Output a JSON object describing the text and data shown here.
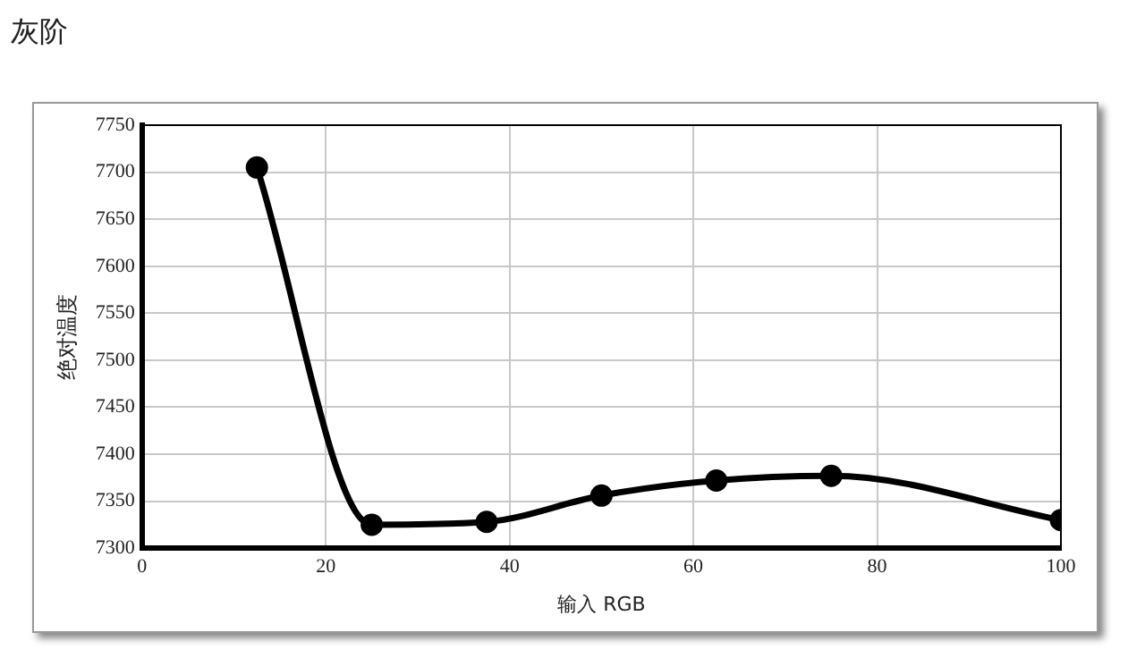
{
  "chart_data": {
    "type": "line",
    "title": "灰阶",
    "xlabel": "输入 RGB",
    "ylabel": "绝对温度",
    "x": [
      12.5,
      25,
      37.5,
      50,
      62.5,
      75,
      100
    ],
    "series": [
      {
        "color": "#000000",
        "values": [
          7705,
          7325,
          7328,
          7356,
          7372,
          7377,
          7330
        ]
      }
    ],
    "xlim": [
      0,
      100
    ],
    "xticks": [
      0,
      20,
      40,
      60,
      80,
      100
    ],
    "ylim": [
      7300,
      7750
    ],
    "yticks": [
      7300,
      7350,
      7400,
      7450,
      7500,
      7550,
      7600,
      7650,
      7700,
      7750
    ],
    "grid": true,
    "legend": false,
    "marker": "circle",
    "line_style": "solid"
  }
}
